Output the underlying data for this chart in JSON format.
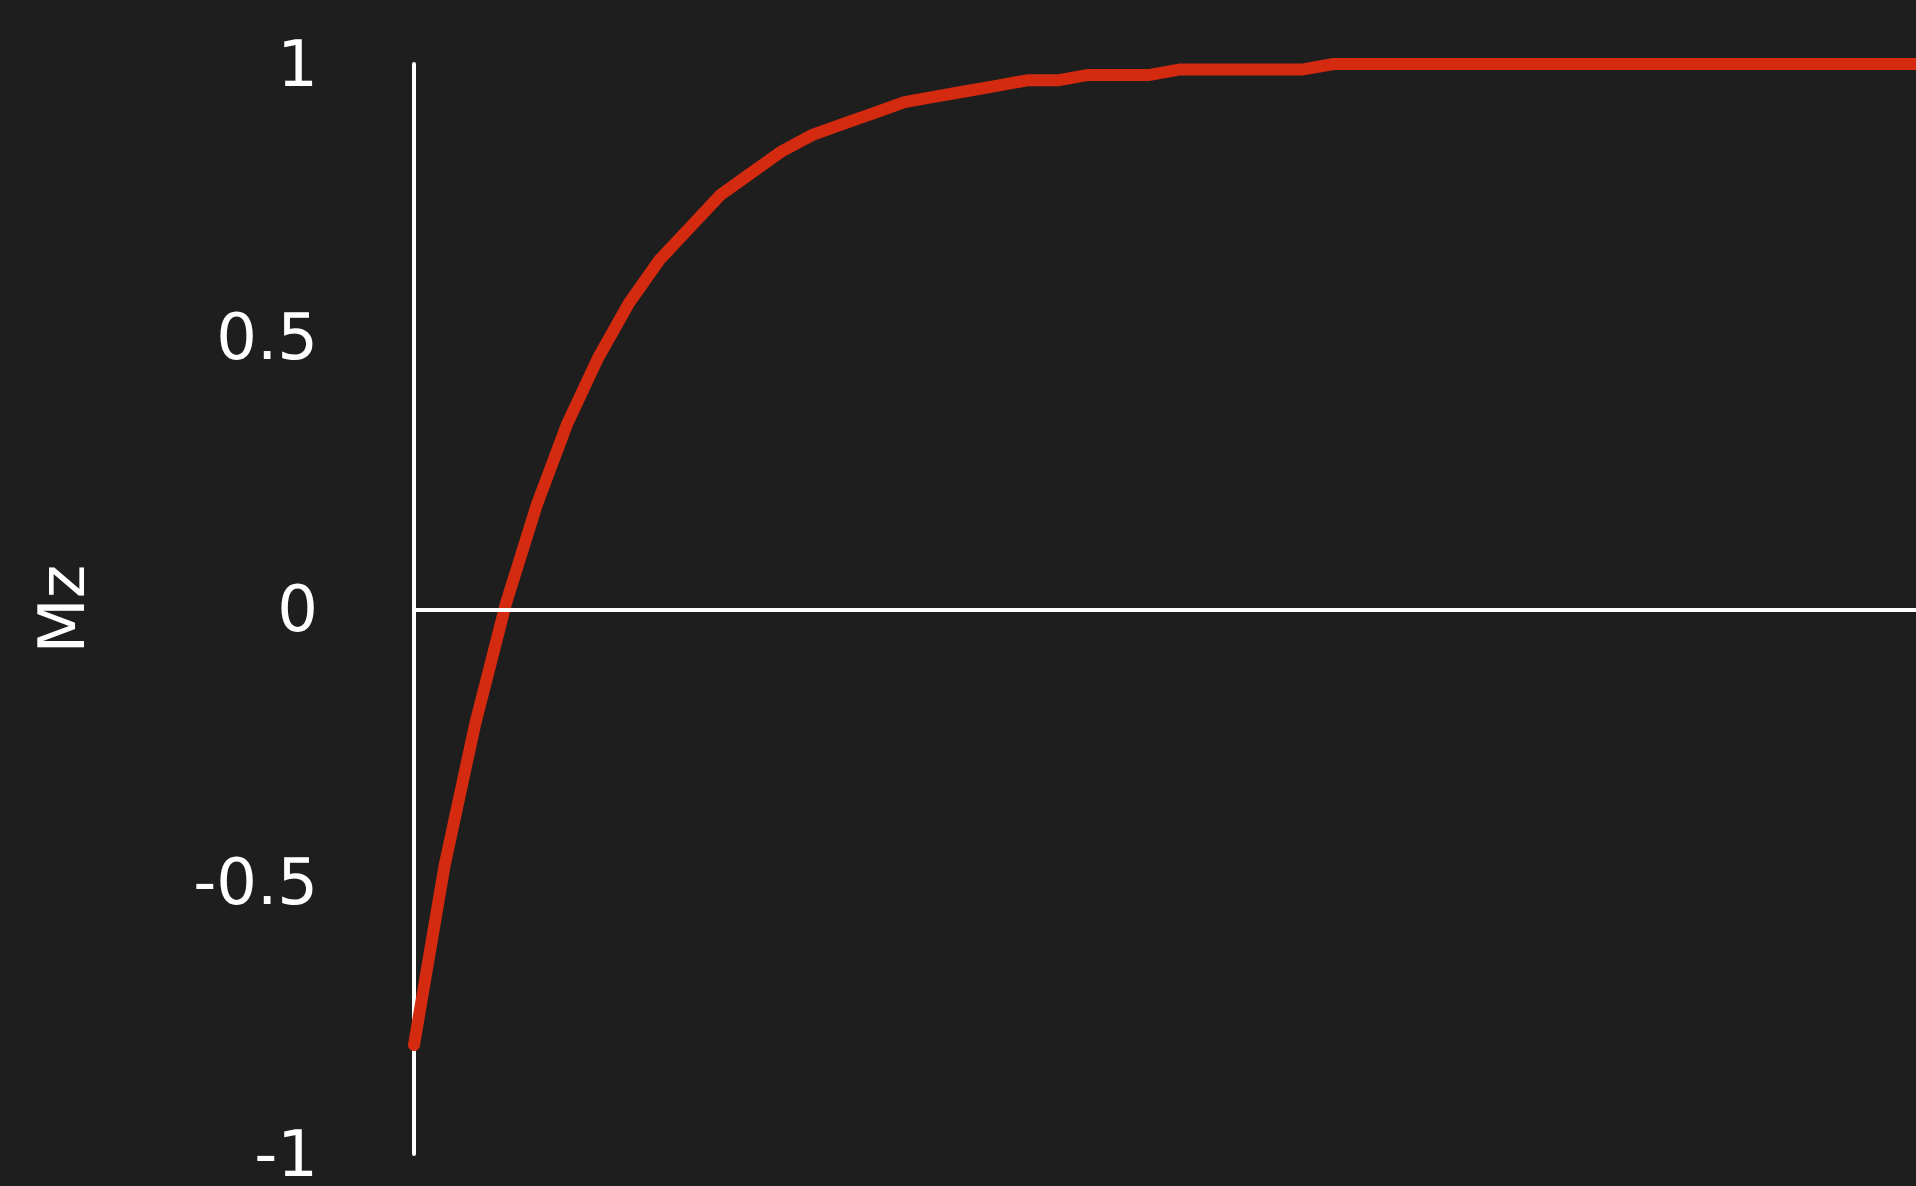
{
  "chart_data": {
    "type": "line",
    "ylabel": "Mz",
    "categories": [
      null,
      null,
      null,
      null,
      null,
      null,
      null,
      null,
      null,
      null,
      null,
      null,
      null,
      null,
      null,
      null,
      null,
      null,
      null,
      null,
      null,
      null,
      null,
      null,
      null,
      null,
      null,
      null,
      null,
      null,
      null,
      null,
      null,
      null,
      null,
      null,
      null,
      null,
      null,
      null,
      null,
      null,
      null,
      null,
      null,
      null,
      null,
      null,
      null,
      null
    ],
    "series": [
      {
        "color": "#d42a10",
        "values": [
          -0.8,
          -0.47,
          -0.21,
          0.01,
          0.19,
          0.34,
          0.46,
          0.56,
          0.64,
          0.7,
          0.76,
          0.8,
          0.84,
          0.87,
          0.89,
          0.91,
          0.93,
          0.94,
          0.95,
          0.96,
          0.97,
          0.97,
          0.98,
          0.98,
          0.98,
          0.99,
          0.99,
          0.99,
          0.99,
          0.99,
          1,
          1,
          1,
          1,
          1,
          1,
          1,
          1,
          1,
          1,
          1,
          1,
          1,
          1,
          1,
          1,
          1,
          1,
          1,
          1
        ]
      }
    ],
    "ylim": [
      -1,
      1
    ],
    "yticks": [
      -1,
      -0.5,
      0,
      0.5,
      1
    ],
    "tick_labels": "y",
    "ref_lines": [
      {
        "axis": "y",
        "value": 0,
        "color": "#ffffff"
      }
    ],
    "marker": "none",
    "line_style": "solid"
  }
}
